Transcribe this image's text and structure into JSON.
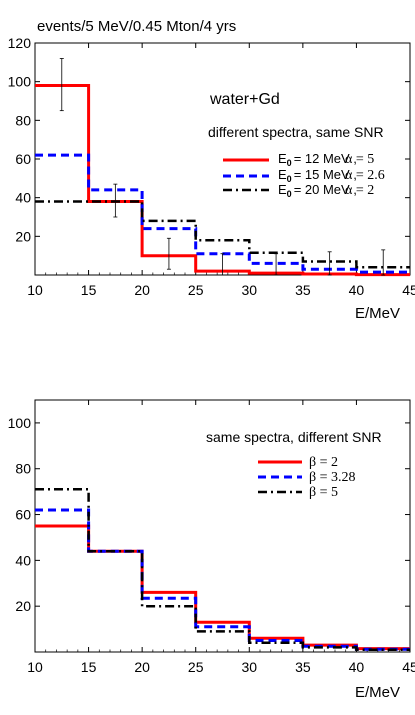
{
  "chart_data": [
    {
      "type": "line",
      "subtype": "step-histogram",
      "title": "events/5 MeV/0.45 Mton/4 yrs",
      "xlabel": "E/MeV",
      "ylabel": "",
      "xlim": [
        10,
        45
      ],
      "ylim": [
        0,
        120
      ],
      "xticks": [
        10,
        15,
        20,
        25,
        30,
        35,
        40,
        45
      ],
      "yticks": [
        20,
        40,
        60,
        80,
        100,
        120
      ],
      "bin_edges": [
        10,
        15,
        20,
        25,
        30,
        35,
        40,
        45
      ],
      "annotations": [
        "water+Gd",
        "different spectra, same SNR"
      ],
      "legend_position": "upper-right",
      "series": [
        {
          "name": "E0 = 12 MeV ,   α = 5",
          "name_main": "E",
          "name_sub": "0",
          "name_rest": "= 12 MeV ,",
          "alpha_text": "α = 5",
          "color": "#ff0000",
          "dash": "solid",
          "values": [
            98,
            38,
            10,
            2,
            1,
            0.5,
            0.2
          ]
        },
        {
          "name": "E0 = 15 MeV ,   α = 2.6",
          "name_main": "E",
          "name_sub": "0",
          "name_rest": "= 15 MeV ,",
          "alpha_text": "α = 2.6",
          "color": "#0000ff",
          "dash": "dashed",
          "values": [
            62,
            44,
            24,
            11,
            6,
            3,
            1.5
          ]
        },
        {
          "name": "E0 = 20 MeV ,   α = 2",
          "name_main": "E",
          "name_sub": "0",
          "name_rest": "= 20 MeV ,",
          "alpha_text": "α = 2",
          "color": "#000000",
          "dash": "dashdot",
          "values": [
            38,
            38,
            28,
            18,
            11.5,
            7,
            4
          ]
        }
      ],
      "error_bars": [
        {
          "x": 12.5,
          "y": 98,
          "low": 85,
          "high": 112
        },
        {
          "x": 17.5,
          "y": 38,
          "low": 30,
          "high": 47
        },
        {
          "x": 22.5,
          "y": 10,
          "low": 3,
          "high": 19
        },
        {
          "x": 27.5,
          "y": 2,
          "low": 0,
          "high": 11
        },
        {
          "x": 32.5,
          "y": 1,
          "low": 0,
          "high": 11
        },
        {
          "x": 37.5,
          "y": 0.5,
          "low": 0,
          "high": 12
        },
        {
          "x": 42.5,
          "y": 0.2,
          "low": 0,
          "high": 13
        }
      ]
    },
    {
      "type": "line",
      "subtype": "step-histogram",
      "title": "",
      "xlabel": "E/MeV",
      "ylabel": "",
      "xlim": [
        10,
        45
      ],
      "ylim": [
        0,
        110
      ],
      "xticks": [
        10,
        15,
        20,
        25,
        30,
        35,
        40,
        45
      ],
      "yticks": [
        20,
        40,
        60,
        80,
        100
      ],
      "bin_edges": [
        10,
        15,
        20,
        25,
        30,
        35,
        40,
        45
      ],
      "annotations": [
        "same spectra, different SNR"
      ],
      "legend_position": "upper-right",
      "series": [
        {
          "name": "β = 2",
          "color": "#ff0000",
          "dash": "solid",
          "values": [
            55,
            44,
            26,
            13,
            6,
            3,
            1.5
          ]
        },
        {
          "name": "β = 3.28",
          "color": "#0000ff",
          "dash": "dashed",
          "values": [
            62,
            44,
            23.5,
            11,
            5,
            2.5,
            1.2
          ]
        },
        {
          "name": "β = 5",
          "color": "#000000",
          "dash": "dashdot",
          "values": [
            71,
            44,
            20,
            9,
            4,
            2,
            1
          ]
        }
      ]
    }
  ]
}
